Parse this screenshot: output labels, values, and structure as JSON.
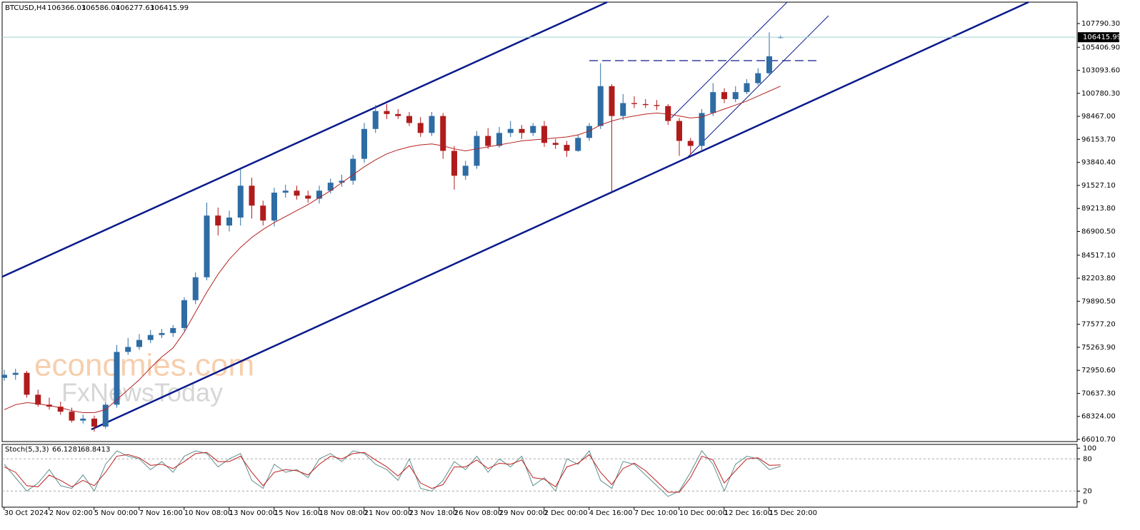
{
  "chart_data": [
    {
      "type": "candlestick",
      "title": "BTCUSD,H4",
      "watermark": [
        "economies.com",
        "FxNewsToday"
      ],
      "categories": [
        null,
        "30 Oct 2024",
        null,
        null,
        null,
        "2 Nov 02:00",
        null,
        null,
        null,
        "5 Nov 00:00",
        null,
        null,
        null,
        "7 Nov 16:00",
        null,
        null,
        null,
        "10 Nov 08:00",
        null,
        null,
        null,
        "13 Nov 00:00",
        null,
        null,
        null,
        "15 Nov 16:00",
        null,
        null,
        null,
        "18 Nov 08:00",
        null,
        null,
        null,
        "21 Nov 00:00",
        null,
        null,
        null,
        "23 Nov 18:00",
        null,
        null,
        null,
        "26 Nov 08:00",
        null,
        null,
        null,
        "29 Nov 00:00",
        null,
        null,
        null,
        "2 Dec 00:00",
        null,
        null,
        null,
        "4 Dec 16:00",
        null,
        null,
        null,
        "7 Dec 10:00",
        null,
        null,
        null,
        "10 Dec 00:00",
        null,
        null,
        null,
        "12 Dec 16:00",
        null,
        null,
        null,
        "15 Dec 20:00"
      ],
      "open": [
        72200,
        72500,
        72700,
        70500,
        69500,
        69300,
        68800,
        67900,
        68100,
        67300,
        69500,
        74800,
        75300,
        76000,
        76500,
        76700,
        77200,
        80000,
        82300,
        88500,
        87500,
        88300,
        91500,
        89500,
        88000,
        90800,
        91000,
        90500,
        90200,
        91000,
        91800,
        92000,
        94200,
        97200,
        99000,
        98700,
        98500,
        97800,
        96800,
        98500,
        95000,
        92500,
        93500,
        96500,
        95500,
        96800,
        97200,
        96800,
        97500,
        95800,
        95600,
        95000,
        96300,
        97500,
        101500,
        98500,
        99800,
        99700,
        99600,
        99500,
        98000,
        96000,
        95500,
        98800,
        100900,
        100200,
        100900,
        101800,
        102800,
        106366.03
      ],
      "high": [
        73000,
        73100,
        72900,
        71000,
        70200,
        69800,
        69200,
        68500,
        68400,
        69800,
        75500,
        76200,
        76600,
        77000,
        77100,
        77500,
        80300,
        82800,
        89800,
        89300,
        89000,
        93100,
        92300,
        90000,
        91300,
        91600,
        91500,
        91000,
        91500,
        92200,
        92600,
        94600,
        97800,
        99600,
        99700,
        99200,
        98900,
        98400,
        98900,
        98800,
        95500,
        94000,
        97000,
        97300,
        97400,
        98000,
        97600,
        97800,
        98000,
        96200,
        96000,
        96600,
        97800,
        103800,
        101700,
        100700,
        100500,
        100200,
        100100,
        99700,
        98300,
        96300,
        99200,
        101800,
        101300,
        101500,
        102200,
        103300,
        106900,
        106586.04
      ],
      "low": [
        71900,
        72000,
        70200,
        69300,
        69000,
        68500,
        67700,
        67600,
        66800,
        67100,
        69200,
        74500,
        75000,
        75700,
        76200,
        76300,
        76900,
        79600,
        82000,
        86500,
        86900,
        87500,
        88200,
        87500,
        87400,
        90300,
        90100,
        89800,
        89700,
        90700,
        91400,
        91600,
        93800,
        96800,
        98200,
        98200,
        97500,
        96400,
        96500,
        94200,
        91100,
        92100,
        93200,
        95200,
        95300,
        96400,
        96200,
        96500,
        95400,
        95200,
        94400,
        94900,
        96000,
        97200,
        90950,
        98100,
        99300,
        99300,
        99100,
        97600,
        94500,
        94600,
        95000,
        98500,
        99800,
        99900,
        100700,
        101600,
        102600,
        106277.63
      ],
      "close": [
        72500,
        72700,
        70500,
        69500,
        69300,
        68800,
        67900,
        68100,
        67300,
        69500,
        74800,
        75300,
        76000,
        76500,
        76700,
        77200,
        80000,
        82300,
        88500,
        87500,
        88300,
        91500,
        89500,
        88000,
        90800,
        91000,
        90500,
        90200,
        91000,
        91800,
        92000,
        94200,
        97200,
        99000,
        98700,
        98500,
        97800,
        96800,
        98500,
        95000,
        92500,
        93500,
        96500,
        95500,
        96800,
        97200,
        96800,
        97500,
        95800,
        95600,
        95000,
        96300,
        97500,
        101500,
        98500,
        99800,
        99700,
        99600,
        99500,
        98000,
        96000,
        95500,
        98800,
        100900,
        100200,
        100900,
        101800,
        102800,
        104500,
        106415.99
      ],
      "up_color": "#2e6ca4",
      "down_color": "#b01c1c",
      "overlay": {
        "color": "#b22222",
        "values": [
          69000,
          69500,
          69700,
          69600,
          69400,
          69200,
          68900,
          68700,
          68700,
          69000,
          70000,
          71000,
          72000,
          73200,
          74300,
          75200,
          76800,
          78800,
          80800,
          82600,
          84100,
          85300,
          86300,
          87100,
          87800,
          88400,
          89000,
          89600,
          90300,
          91000,
          91800,
          92600,
          93400,
          94100,
          94700,
          95100,
          95400,
          95600,
          95700,
          95500,
          95200,
          95000,
          95200,
          95400,
          95600,
          95800,
          96000,
          96100,
          96200,
          96300,
          96400,
          96600,
          97000,
          97600,
          98000,
          98300,
          98500,
          98700,
          98800,
          98700,
          98500,
          98300,
          98400,
          98800,
          99200,
          99600,
          100000,
          100500,
          101000,
          101500
        ]
      },
      "ylim": [
        65796,
        109940
      ],
      "yticks": [
        {
          "value": 107790.3,
          "label": "107790.30"
        },
        {
          "value": 105406.9,
          "label": "105406.90"
        },
        {
          "value": 103093.6,
          "label": "103093.60"
        },
        {
          "value": 100780.3,
          "label": "100780.30"
        },
        {
          "value": 98467,
          "label": "98467.00"
        },
        {
          "value": 96153.7,
          "label": "96153.70"
        },
        {
          "value": 93840.4,
          "label": "93840.40"
        },
        {
          "value": 91527.1,
          "label": "91527.10"
        },
        {
          "value": 89213.8,
          "label": "89213.80"
        },
        {
          "value": 86900.5,
          "label": "86900.50"
        },
        {
          "value": 84517.1,
          "label": "84517.10"
        },
        {
          "value": 82203.8,
          "label": "82203.80"
        },
        {
          "value": 79890.5,
          "label": "79890.50"
        },
        {
          "value": 77577.2,
          "label": "77577.20"
        },
        {
          "value": 75263.9,
          "label": "75263.90"
        },
        {
          "value": 72950.6,
          "label": "72950.60"
        },
        {
          "value": 70637.3,
          "label": "70637.30"
        },
        {
          "value": 68324,
          "label": "68324.00"
        },
        {
          "value": 66010.7,
          "label": "66010.70"
        }
      ]
    },
    {
      "type": "line",
      "title": "Stoch(5,3,3)",
      "series": [
        {
          "color": "#5f8f8f",
          "values": [
            70,
            45,
            20,
            35,
            60,
            30,
            25,
            50,
            20,
            70,
            95,
            85,
            80,
            60,
            75,
            55,
            85,
            95,
            90,
            65,
            80,
            90,
            40,
            25,
            70,
            55,
            60,
            45,
            80,
            90,
            75,
            95,
            90,
            70,
            60,
            40,
            80,
            25,
            20,
            40,
            75,
            60,
            85,
            55,
            80,
            65,
            85,
            30,
            45,
            20,
            80,
            70,
            95,
            40,
            25,
            75,
            70,
            50,
            30,
            10,
            20,
            55,
            95,
            70,
            20,
            70,
            85,
            80,
            60,
            66.1281
          ]
        },
        {
          "color": "#c02020",
          "values": [
            65,
            55,
            30,
            28,
            50,
            40,
            28,
            40,
            30,
            55,
            85,
            88,
            82,
            68,
            70,
            62,
            75,
            90,
            92,
            75,
            75,
            85,
            55,
            30,
            55,
            60,
            58,
            50,
            70,
            85,
            80,
            90,
            92,
            78,
            65,
            48,
            68,
            35,
            25,
            32,
            65,
            65,
            78,
            62,
            72,
            70,
            78,
            45,
            42,
            28,
            65,
            72,
            88,
            55,
            32,
            62,
            72,
            58,
            38,
            18,
            18,
            45,
            85,
            78,
            35,
            58,
            80,
            82,
            68,
            68.8413
          ]
        }
      ],
      "levels": [
        80,
        20
      ],
      "ylim": [
        -10,
        107
      ],
      "yticks": [
        100,
        80,
        20,
        0
      ]
    }
  ]
}
